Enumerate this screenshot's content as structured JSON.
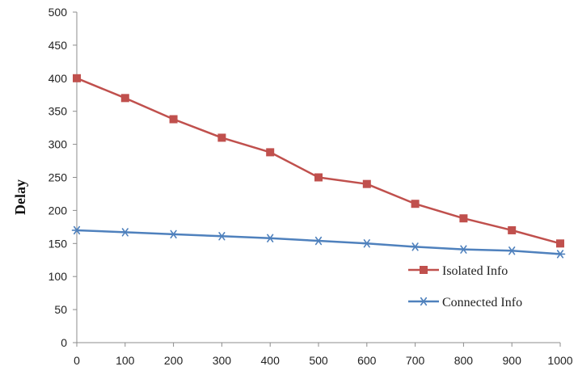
{
  "chart_data": {
    "type": "line",
    "title": "",
    "xlabel": "",
    "ylabel": "Delay",
    "x": [
      0,
      100,
      200,
      300,
      400,
      500,
      600,
      700,
      800,
      900,
      1000
    ],
    "xlim": [
      0,
      1000
    ],
    "ylim": [
      0,
      500
    ],
    "x_ticks": [
      "0",
      "100",
      "200",
      "300",
      "400",
      "500",
      "600",
      "700",
      "800",
      "900",
      "1000"
    ],
    "y_ticks": [
      "0",
      "50",
      "100",
      "150",
      "200",
      "250",
      "300",
      "350",
      "400",
      "450",
      "500"
    ],
    "grid": false,
    "legend_position": "right",
    "series": [
      {
        "name": "Isolated Info",
        "color": "#c0504d",
        "marker": "square",
        "values": [
          400,
          370,
          338,
          310,
          288,
          250,
          240,
          210,
          188,
          170,
          150
        ]
      },
      {
        "name": "Connected Info",
        "color": "#4f81bd",
        "marker": "asterisk",
        "values": [
          170,
          167,
          164,
          161,
          158,
          154,
          150,
          145,
          141,
          139,
          134
        ]
      }
    ]
  }
}
